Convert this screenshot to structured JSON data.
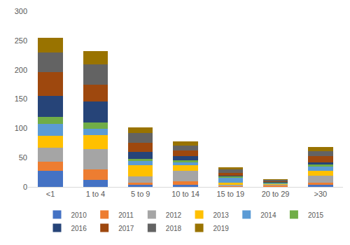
{
  "chart_data": {
    "type": "bar",
    "stacked": true,
    "grid": false,
    "legend": "bottom",
    "categories": [
      "<1",
      "1 to 4",
      "5 to 9",
      "10 to 14",
      "15 to 19",
      "20 to 29",
      ">30"
    ],
    "ylim": [
      0,
      300
    ],
    "yticks": [
      0,
      50,
      100,
      150,
      200,
      250,
      300
    ],
    "series": [
      {
        "name": "2010",
        "color": "#4472C4",
        "values": [
          28,
          12,
          3,
          4,
          0,
          0,
          3
        ]
      },
      {
        "name": "2011",
        "color": "#ED7D31",
        "values": [
          15,
          18,
          4,
          6,
          1,
          2,
          4
        ]
      },
      {
        "name": "2012",
        "color": "#A5A5A5",
        "values": [
          24,
          35,
          11,
          18,
          2,
          2,
          12
        ]
      },
      {
        "name": "2013",
        "color": "#FFC000",
        "values": [
          20,
          24,
          19,
          9,
          4,
          1,
          8
        ]
      },
      {
        "name": "2014",
        "color": "#5B9BD5",
        "values": [
          21,
          10,
          7,
          5,
          9,
          1,
          8
        ]
      },
      {
        "name": "2015",
        "color": "#70AD47",
        "values": [
          11,
          11,
          4,
          4,
          2,
          1,
          3
        ]
      },
      {
        "name": "2016",
        "color": "#264478",
        "values": [
          36,
          36,
          12,
          6,
          1,
          1,
          4
        ]
      },
      {
        "name": "2017",
        "color": "#9E480E",
        "values": [
          41,
          28,
          15,
          10,
          5,
          2,
          11
        ]
      },
      {
        "name": "2018",
        "color": "#636363",
        "values": [
          34,
          35,
          17,
          9,
          6,
          2,
          8
        ]
      },
      {
        "name": "2019",
        "color": "#997300",
        "values": [
          24,
          23,
          10,
          7,
          3,
          1,
          7
        ]
      }
    ]
  }
}
